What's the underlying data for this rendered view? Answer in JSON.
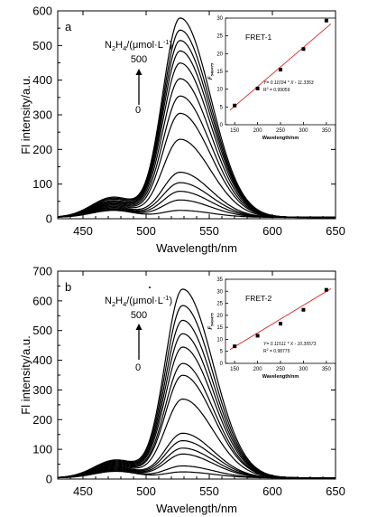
{
  "chart_data": [
    {
      "type": "line",
      "panel_label": "a",
      "xlabel": "Wavelength/nm",
      "ylabel": "Fl intensity/a.u.",
      "xlim": [
        430,
        650
      ],
      "ylim": [
        0,
        600
      ],
      "xticks": [
        450,
        500,
        550,
        600,
        650
      ],
      "yticks": [
        0,
        100,
        200,
        300,
        400,
        500,
        600
      ],
      "x_tick_labels": [
        "450",
        "500",
        "550",
        "600",
        "650"
      ],
      "y_tick_labels": [
        "0",
        "100",
        "200",
        "300",
        "400",
        "500",
        "600"
      ],
      "acceptor_peak": 527,
      "donor_peak": 474,
      "donor_peaks": [
        58,
        55,
        52,
        48,
        45,
        42,
        39,
        36,
        33,
        30,
        27,
        24,
        22,
        20
      ],
      "acceptor_peaks": [
        575,
        540,
        510,
        480,
        445,
        400,
        350,
        300,
        225,
        130,
        100,
        75,
        50,
        20
      ],
      "annotation": {
        "prefix": "N",
        "sub1": "2",
        "middle": "H",
        "sub2": "4",
        "suffix": "/(μmol·L",
        "sup": "-1",
        "close": ")",
        "arrow_top_label": "500",
        "arrow_bottom_label": "0"
      },
      "inset": {
        "title": "FRET-1",
        "xlabel": "Wavelength/nm",
        "ylabel": "F",
        "ylabel_sub": "540/475",
        "xlim": [
          130,
          370
        ],
        "ylim": [
          0,
          30
        ],
        "xticks": [
          150,
          200,
          250,
          300,
          350
        ],
        "yticks": [
          0,
          5,
          10,
          15,
          20,
          25,
          30
        ],
        "x_tick_labels": [
          "150",
          "200",
          "250",
          "300",
          "350"
        ],
        "y_tick_labels": [
          "0",
          "5",
          "10",
          "15",
          "20",
          "25",
          "30"
        ],
        "points": [
          {
            "x": 150,
            "y": 5.4
          },
          {
            "x": 200,
            "y": 10.2
          },
          {
            "x": 250,
            "y": 15.5
          },
          {
            "x": 300,
            "y": 21.3
          },
          {
            "x": 350,
            "y": 29.3
          }
        ],
        "fit": {
          "slope": 0.11034,
          "intercept": -11.3353,
          "x_from": 140,
          "x_to": 360
        },
        "equation": "Y= 0.11034 * X - 11.3353",
        "r2_label": "R",
        "r2_sup": "2",
        "r2_value": "= 0.99059"
      }
    },
    {
      "type": "line",
      "panel_label": "b",
      "xlabel": "Wavelength/nm",
      "ylabel": "Fl intensity/a.u.",
      "xlim": [
        430,
        650
      ],
      "ylim": [
        0,
        700
      ],
      "xticks": [
        450,
        500,
        550,
        600,
        650
      ],
      "yticks": [
        0,
        100,
        200,
        300,
        400,
        500,
        600,
        700
      ],
      "x_tick_labels": [
        "450",
        "500",
        "550",
        "600",
        "650"
      ],
      "y_tick_labels": [
        "0",
        "100",
        "200",
        "300",
        "400",
        "500",
        "600",
        "700"
      ],
      "acceptor_peak": 529,
      "donor_peak": 476,
      "donor_peaks": [
        60,
        57,
        54,
        51,
        48,
        45,
        42,
        39,
        36,
        33,
        30,
        27,
        24,
        22
      ],
      "acceptor_peaks": [
        635,
        580,
        530,
        485,
        440,
        385,
        345,
        265,
        150,
        125,
        100,
        80,
        40,
        20
      ],
      "annotation": {
        "prefix": "N",
        "sub1": "2",
        "middle": "H",
        "sub2": "4",
        "suffix": "/(μmol·L",
        "sup": "-1",
        "close": ")",
        "arrow_top_label": "500",
        "arrow_bottom_label": "0"
      },
      "inset": {
        "title": "FRET-2",
        "xlabel": "Wavelength/nm",
        "ylabel": "F",
        "ylabel_sub": "540/475",
        "xlim": [
          130,
          370
        ],
        "ylim": [
          0,
          35
        ],
        "xticks": [
          150,
          200,
          250,
          300,
          350
        ],
        "yticks": [
          0,
          5,
          10,
          15,
          20,
          25,
          30,
          35
        ],
        "x_tick_labels": [
          "150",
          "200",
          "250",
          "300",
          "350"
        ],
        "y_tick_labels": [
          "0",
          "5",
          "10",
          "15",
          "20",
          "25",
          "30",
          "35"
        ],
        "points": [
          {
            "x": 150,
            "y": 7.1
          },
          {
            "x": 200,
            "y": 11.5
          },
          {
            "x": 250,
            "y": 16.5
          },
          {
            "x": 300,
            "y": 22.3
          },
          {
            "x": 350,
            "y": 30.6
          }
        ],
        "fit": {
          "slope": 0.11511,
          "intercept": -10.35573,
          "x_from": 140,
          "x_to": 360
        },
        "equation": "Y= 0.11511 * X - 10.35573",
        "r2_label": "R",
        "r2_sup": "2",
        "r2_value": "= 0.98775"
      }
    }
  ]
}
